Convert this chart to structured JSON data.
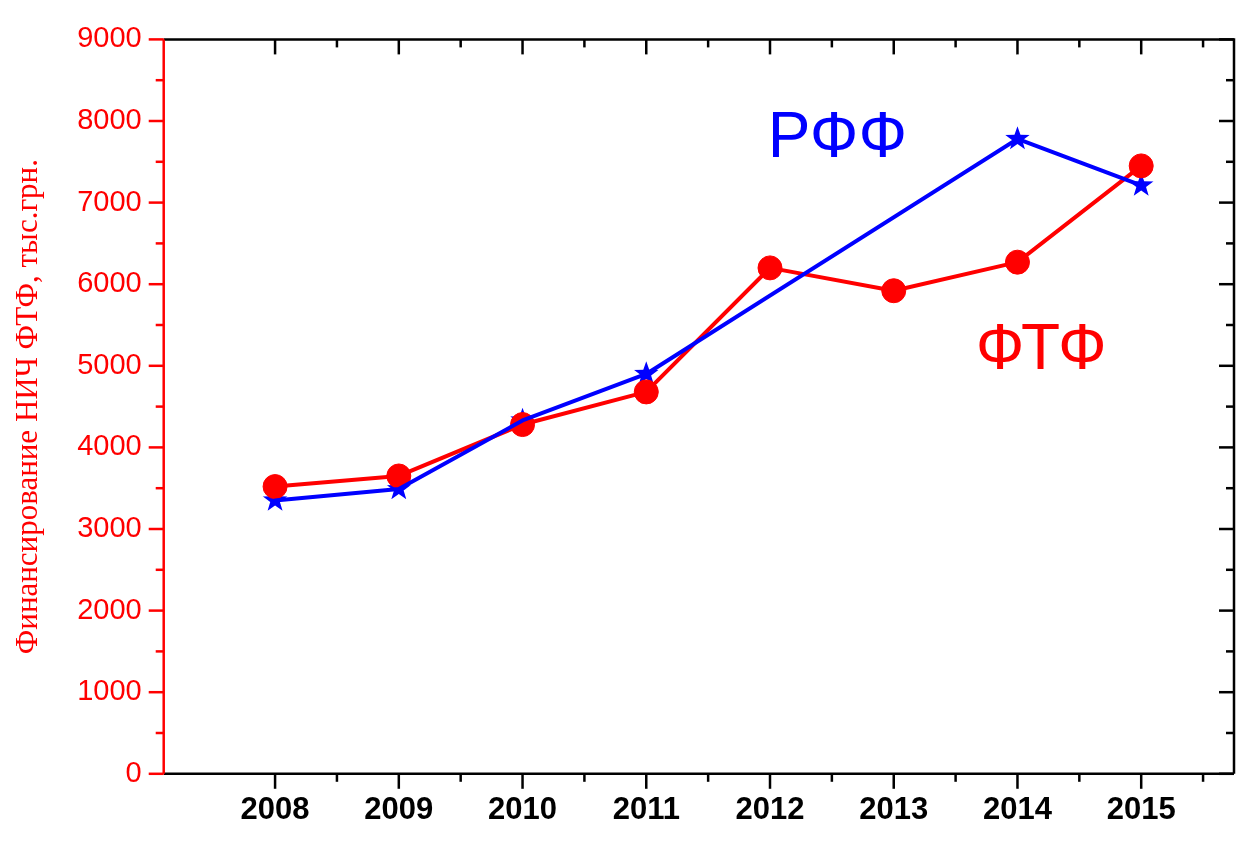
{
  "chart_data": {
    "type": "line",
    "ylabel": "Финансирование НИЧ ФТФ, тыс.грн.",
    "x": [
      2008,
      2009,
      2010,
      2011,
      2012,
      2013,
      2014,
      2015
    ],
    "xlim": [
      2007.1,
      2015.75
    ],
    "xticks": [
      2008,
      {
        "value": 2008.5,
        "label": null
      },
      2009,
      {
        "value": 2009.5,
        "label": null
      },
      2010,
      {
        "value": 2010.5,
        "label": null
      },
      2011,
      {
        "value": 2011.5,
        "label": null
      },
      2012,
      {
        "value": 2012.5,
        "label": null
      },
      2013,
      {
        "value": 2013.5,
        "label": null
      },
      2014,
      {
        "value": 2014.5,
        "label": null
      },
      2015,
      {
        "value": 2015.5,
        "label": null
      }
    ],
    "ylim": [
      0,
      9000
    ],
    "yticks": [
      0,
      {
        "value": 500,
        "label": null
      },
      1000,
      {
        "value": 1500,
        "label": null
      },
      2000,
      {
        "value": 2500,
        "label": null
      },
      3000,
      {
        "value": 3500,
        "label": null
      },
      4000,
      {
        "value": 4500,
        "label": null
      },
      5000,
      {
        "value": 5500,
        "label": null
      },
      6000,
      {
        "value": 6500,
        "label": null
      },
      7000,
      {
        "value": 7500,
        "label": null
      },
      8000,
      {
        "value": 8500,
        "label": null
      },
      9000
    ],
    "series": [
      {
        "name": "ФТФ",
        "color": "#ff0000",
        "marker": "circle",
        "values": [
          3520,
          3650,
          4280,
          4680,
          6200,
          5920,
          6270,
          7450
        ]
      },
      {
        "name": "РФФ",
        "color": "#0000ff",
        "marker": "star",
        "values": [
          3350,
          3490,
          4330,
          4900,
          null,
          null,
          7780,
          7210
        ]
      }
    ],
    "grid": false,
    "legend": "top right"
  }
}
